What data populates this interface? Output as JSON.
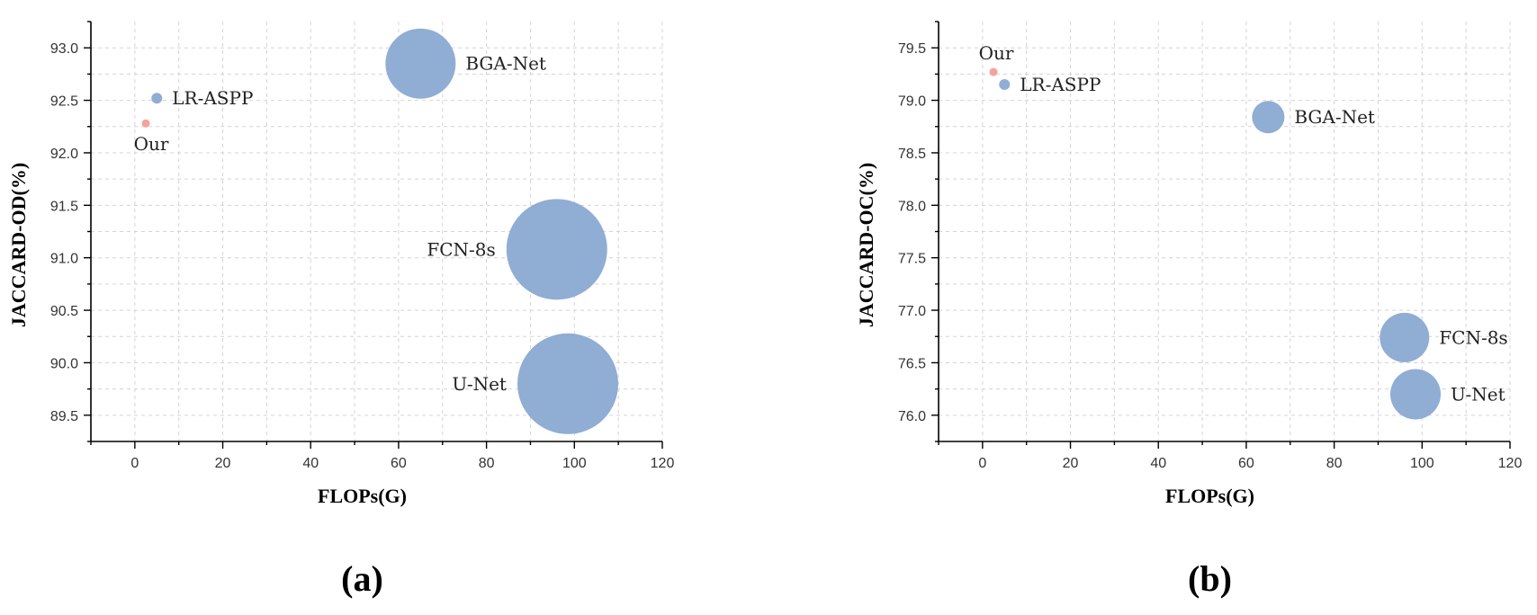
{
  "chart_data": [
    {
      "type": "scatter",
      "panel_label": "(a)",
      "xlabel": "FLOPs(G)",
      "ylabel": "JACCARD-OD(%)",
      "xlim": [
        -10,
        120
      ],
      "ylim": [
        89.25,
        93.25
      ],
      "xticks": [
        "0",
        "20",
        "40",
        "60",
        "80",
        "100",
        "120"
      ],
      "yticks": [
        "89.5",
        "90.0",
        "90.5",
        "91.0",
        "91.5",
        "92.0",
        "92.5",
        "93.0"
      ],
      "grid": true,
      "size_encoding": "bubble area",
      "points": [
        {
          "label": "Our",
          "x": 2.5,
          "y": 92.28,
          "color": "#f4a09c",
          "label_pos": "below"
        },
        {
          "label": "LR-ASPP",
          "x": 5,
          "y": 92.52,
          "color": "#8eabd3",
          "label_pos": "right"
        },
        {
          "label": "BGA-Net",
          "x": 65,
          "y": 92.85,
          "color": "#8eabd3",
          "label_pos": "right"
        },
        {
          "label": "FCN-8s",
          "x": 96,
          "y": 91.08,
          "color": "#8eabd3",
          "label_pos": "left"
        },
        {
          "label": "U-Net",
          "x": 98.5,
          "y": 89.8,
          "color": "#8eabd3",
          "label_pos": "left"
        }
      ]
    },
    {
      "type": "scatter",
      "panel_label": "(b)",
      "xlabel": "FLOPs(G)",
      "ylabel": "JACCARD-OC(%)",
      "xlim": [
        -10,
        120
      ],
      "ylim": [
        75.75,
        79.75
      ],
      "xticks": [
        "0",
        "20",
        "40",
        "60",
        "80",
        "100",
        "120"
      ],
      "yticks": [
        "76.0",
        "76.5",
        "77.0",
        "77.5",
        "78.0",
        "78.5",
        "79.0",
        "79.5"
      ],
      "grid": true,
      "size_encoding": "bubble area",
      "points": [
        {
          "label": "Our",
          "x": 2.5,
          "y": 79.27,
          "color": "#f4a09c",
          "label_pos": "above"
        },
        {
          "label": "LR-ASPP",
          "x": 5,
          "y": 79.15,
          "color": "#8eabd3",
          "label_pos": "right"
        },
        {
          "label": "BGA-Net",
          "x": 65,
          "y": 78.84,
          "color": "#8eabd3",
          "label_pos": "right"
        },
        {
          "label": "FCN-8s",
          "x": 96,
          "y": 76.74,
          "color": "#8eabd3",
          "label_pos": "right"
        },
        {
          "label": "U-Net",
          "x": 98.5,
          "y": 76.2,
          "color": "#8eabd3",
          "label_pos": "right"
        }
      ]
    }
  ]
}
